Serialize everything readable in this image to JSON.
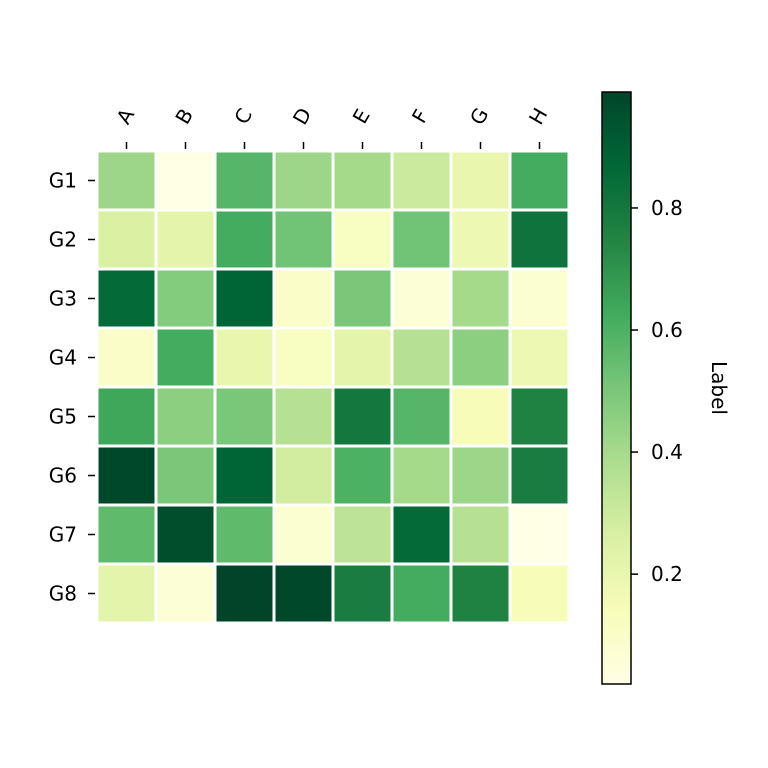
{
  "chart_data": {
    "type": "heatmap",
    "title": "",
    "columns": [
      "A",
      "B",
      "C",
      "D",
      "E",
      "F",
      "G",
      "H"
    ],
    "rows": [
      "G1",
      "G2",
      "G3",
      "G4",
      "G5",
      "G6",
      "G7",
      "G8"
    ],
    "values": [
      [
        0.42,
        0.02,
        0.58,
        0.42,
        0.4,
        0.3,
        0.2,
        0.62
      ],
      [
        0.26,
        0.22,
        0.62,
        0.52,
        0.12,
        0.52,
        0.18,
        0.82
      ],
      [
        0.86,
        0.48,
        0.88,
        0.1,
        0.5,
        0.06,
        0.4,
        0.08
      ],
      [
        0.1,
        0.62,
        0.2,
        0.12,
        0.22,
        0.36,
        0.46,
        0.18
      ],
      [
        0.64,
        0.46,
        0.5,
        0.36,
        0.8,
        0.58,
        0.14,
        0.76
      ],
      [
        0.98,
        0.5,
        0.88,
        0.28,
        0.6,
        0.4,
        0.42,
        0.78
      ],
      [
        0.56,
        0.96,
        0.56,
        0.08,
        0.34,
        0.86,
        0.36,
        0.02
      ],
      [
        0.22,
        0.06,
        0.99,
        0.98,
        0.78,
        0.62,
        0.76,
        0.14
      ]
    ],
    "colormap": [
      "#ffffe5",
      "#f7fcb9",
      "#d9f0a3",
      "#addd8e",
      "#78c679",
      "#41ab5d",
      "#238443",
      "#006837",
      "#004529"
    ],
    "colorbar": {
      "label": "Label",
      "range": [
        0.02,
        0.99
      ],
      "ticks": [
        0.2,
        0.4,
        0.6,
        0.8
      ],
      "tick_labels": [
        "0.2",
        "0.4",
        "0.6",
        "0.8"
      ]
    },
    "xaxis_position": "top",
    "grid_color": "#ffffff"
  }
}
